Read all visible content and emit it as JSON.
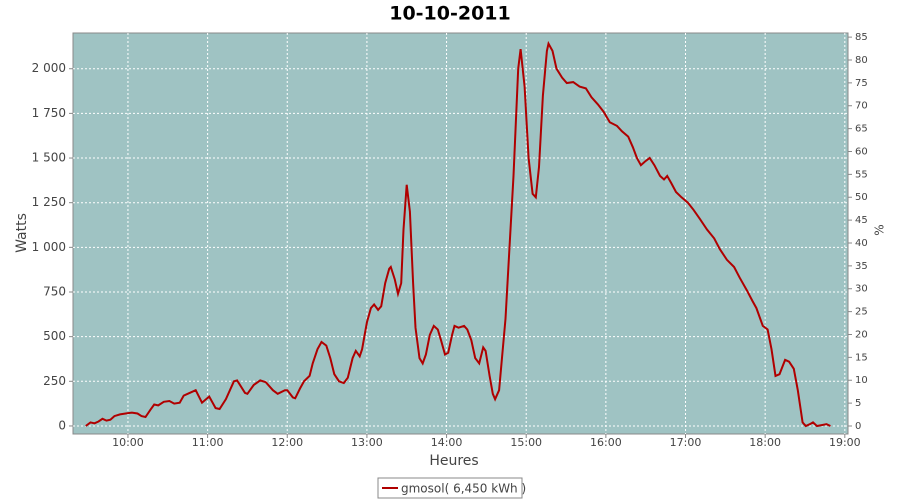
{
  "chart_data": {
    "type": "line",
    "title": "10-10-2011",
    "xlabel": "Heures",
    "ylabel": "Watts",
    "y2label": "%",
    "xlim": [
      9.31,
      19.04
    ],
    "xticks": [
      {
        "value": 10,
        "label": "10:00"
      },
      {
        "value": 11,
        "label": "11:00"
      },
      {
        "value": 12,
        "label": "12:00"
      },
      {
        "value": 13,
        "label": "13:00"
      },
      {
        "value": 14,
        "label": "14:00"
      },
      {
        "value": 15,
        "label": "15:00"
      },
      {
        "value": 16,
        "label": "16:00"
      },
      {
        "value": 17,
        "label": "17:00"
      },
      {
        "value": 18,
        "label": "18:00"
      },
      {
        "value": 19,
        "label": "19:00"
      }
    ],
    "ylim": [
      -45,
      2200
    ],
    "yticks": [
      0,
      250,
      500,
      750,
      {
        "value": 1000,
        "label": "1 000"
      },
      {
        "value": 1250,
        "label": "1 250"
      },
      {
        "value": 1500,
        "label": "1 500"
      },
      {
        "value": 1750,
        "label": "1 750"
      },
      {
        "value": 2000,
        "label": "2 000"
      }
    ],
    "y2lim": [
      -1.75,
      85.9
    ],
    "y2ticks": [
      0,
      5,
      10,
      15,
      20,
      25,
      30,
      35,
      40,
      45,
      50,
      55,
      60,
      65,
      70,
      75,
      80,
      85
    ],
    "grid": true,
    "background": "#9fc3c3",
    "x": [
      9.47,
      9.53,
      9.58,
      9.63,
      9.68,
      9.73,
      9.78,
      9.83,
      9.9,
      9.97,
      10.05,
      10.12,
      10.17,
      10.22,
      10.28,
      10.33,
      10.38,
      10.45,
      10.52,
      10.58,
      10.65,
      10.7,
      10.75,
      10.85,
      10.93,
      11.02,
      11.1,
      11.15,
      11.23,
      11.33,
      11.37,
      11.47,
      11.5,
      11.58,
      11.66,
      11.73,
      11.82,
      11.88,
      11.97,
      12.0,
      12.07,
      12.1,
      12.16,
      12.21,
      12.28,
      12.32,
      12.38,
      12.43,
      12.49,
      12.54,
      12.59,
      12.65,
      12.71,
      12.76,
      12.82,
      12.86,
      12.91,
      12.94,
      13.0,
      13.05,
      13.09,
      13.14,
      13.18,
      13.23,
      13.28,
      13.3,
      13.35,
      13.39,
      13.43,
      13.46,
      13.5,
      13.54,
      13.58,
      13.61,
      13.66,
      13.7,
      13.74,
      13.79,
      13.84,
      13.89,
      13.93,
      13.98,
      14.02,
      14.07,
      14.1,
      14.15,
      14.22,
      14.26,
      14.31,
      14.36,
      14.41,
      14.46,
      14.49,
      14.54,
      14.58,
      14.61,
      14.66,
      14.69,
      14.74,
      14.79,
      14.84,
      14.9,
      14.93,
      14.98,
      15.03,
      15.08,
      15.12,
      15.16,
      15.21,
      15.26,
      15.28,
      15.33,
      15.38,
      15.45,
      15.51,
      15.59,
      15.67,
      15.75,
      15.82,
      15.9,
      15.97,
      16.05,
      16.14,
      16.2,
      16.28,
      16.34,
      16.39,
      16.44,
      16.49,
      16.55,
      16.61,
      16.68,
      16.73,
      16.77,
      16.82,
      16.88,
      16.95,
      17.03,
      17.1,
      17.18,
      17.27,
      17.36,
      17.43,
      17.52,
      17.61,
      17.68,
      17.77,
      17.84,
      17.89,
      17.97,
      18.03,
      18.08,
      18.13,
      18.18,
      18.25,
      18.3,
      18.36,
      18.41,
      18.47,
      18.51,
      18.56,
      18.6,
      18.65,
      18.71,
      18.77,
      18.82
    ],
    "series": [
      {
        "name": "gmosol( 6,450 kWh )",
        "color": "#b00000",
        "values": [
          0,
          20,
          15,
          25,
          40,
          30,
          35,
          55,
          65,
          70,
          75,
          70,
          55,
          50,
          90,
          120,
          115,
          135,
          140,
          125,
          130,
          170,
          180,
          200,
          130,
          165,
          100,
          95,
          150,
          250,
          255,
          185,
          180,
          230,
          255,
          245,
          200,
          180,
          200,
          200,
          160,
          155,
          210,
          250,
          280,
          350,
          430,
          470,
          450,
          380,
          290,
          250,
          240,
          270,
          380,
          420,
          390,
          430,
          580,
          660,
          680,
          650,
          670,
          800,
          880,
          890,
          820,
          740,
          800,
          1100,
          1350,
          1200,
          800,
          550,
          380,
          350,
          400,
          510,
          560,
          540,
          480,
          400,
          410,
          510,
          560,
          550,
          560,
          540,
          480,
          380,
          350,
          440,
          420,
          280,
          180,
          150,
          200,
          350,
          600,
          1000,
          1400,
          2000,
          2110,
          1900,
          1500,
          1300,
          1280,
          1450,
          1850,
          2100,
          2140,
          2100,
          2000,
          1950,
          1920,
          1925,
          1900,
          1890,
          1840,
          1800,
          1760,
          1700,
          1680,
          1650,
          1620,
          1560,
          1500,
          1460,
          1480,
          1500,
          1460,
          1400,
          1380,
          1400,
          1360,
          1310,
          1280,
          1250,
          1210,
          1160,
          1100,
          1050,
          990,
          930,
          890,
          830,
          760,
          700,
          660,
          560,
          540,
          430,
          280,
          290,
          370,
          360,
          320,
          200,
          20,
          0,
          10,
          20,
          0,
          5,
          10,
          0
        ]
      }
    ]
  }
}
